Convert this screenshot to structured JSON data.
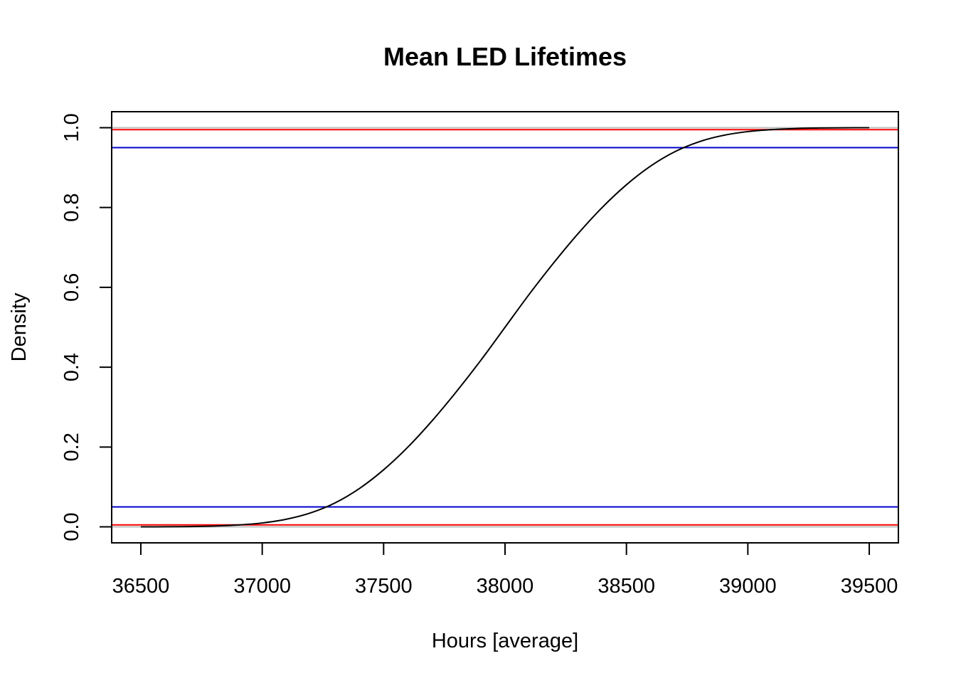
{
  "chart_data": {
    "type": "line",
    "title": "Mean LED Lifetimes",
    "xlabel": "Hours [average]",
    "ylabel": "Density",
    "xlim": [
      36380,
      39620
    ],
    "ylim": [
      -0.04,
      1.04
    ],
    "x_ticks": [
      36500,
      37000,
      37500,
      38000,
      38500,
      39000,
      39500
    ],
    "x_tick_labels": [
      "36500",
      "37000",
      "37500",
      "38000",
      "38500",
      "39000",
      "39500"
    ],
    "y_ticks": [
      0.0,
      0.2,
      0.4,
      0.6,
      0.8,
      1.0
    ],
    "y_tick_labels": [
      "0.0",
      "0.2",
      "0.4",
      "0.6",
      "0.8",
      "1.0"
    ],
    "grid": false,
    "legend": "none",
    "series": [
      {
        "color": "#000000",
        "x": [
          36500,
          36600,
          36700,
          36800,
          36900,
          37000,
          37100,
          37200,
          37300,
          37400,
          37500,
          37600,
          37700,
          37800,
          37900,
          38000,
          38100,
          38200,
          38300,
          38400,
          38500,
          38600,
          38700,
          38800,
          38900,
          39000,
          39100,
          39200,
          39300,
          39400,
          39500
        ],
        "y": [
          0.0001,
          0.0003,
          0.0008,
          0.002,
          0.0047,
          0.0098,
          0.0192,
          0.0351,
          0.06,
          0.096,
          0.143,
          0.2,
          0.266,
          0.339,
          0.417,
          0.5,
          0.583,
          0.661,
          0.734,
          0.8,
          0.857,
          0.904,
          0.94,
          0.9649,
          0.9808,
          0.9902,
          0.9953,
          0.998,
          0.9992,
          0.9997,
          0.9999
        ]
      }
    ],
    "reference_lines": [
      {
        "axis": "y",
        "value": 0.0,
        "color": "#bebebe"
      },
      {
        "axis": "y",
        "value": 1.0,
        "color": "#bebebe"
      },
      {
        "axis": "y",
        "value": 0.005,
        "color": "#ff0000"
      },
      {
        "axis": "y",
        "value": 0.995,
        "color": "#ff0000"
      },
      {
        "axis": "y",
        "value": 0.05,
        "color": "#0000cd"
      },
      {
        "axis": "y",
        "value": 0.95,
        "color": "#0000cd"
      }
    ]
  }
}
